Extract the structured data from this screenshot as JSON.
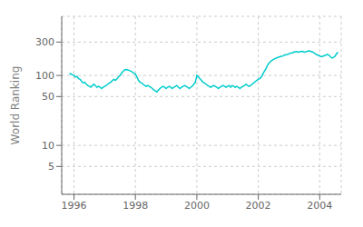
{
  "chart_data": {
    "type": "line",
    "ylabel": "World Ranking",
    "color": "#00cccc",
    "log": "y",
    "grid": true,
    "xlim": [
      1995.6,
      2004.7
    ],
    "ylim": [
      2.0,
      700
    ],
    "xticks": [
      1996,
      1998,
      2000,
      2002,
      2004
    ],
    "yticks": [
      5,
      10,
      50,
      100,
      300
    ],
    "x": [
      1995.85,
      1995.9,
      1995.95,
      1996.0,
      1996.05,
      1996.1,
      1996.15,
      1996.2,
      1996.25,
      1996.3,
      1996.35,
      1996.4,
      1996.45,
      1996.5,
      1996.55,
      1996.6,
      1996.65,
      1996.7,
      1996.75,
      1996.8,
      1996.85,
      1996.9,
      1996.95,
      1997.0,
      1997.05,
      1997.1,
      1997.15,
      1997.2,
      1997.25,
      1997.3,
      1997.35,
      1997.4,
      1997.45,
      1997.5,
      1997.55,
      1997.6,
      1997.65,
      1997.7,
      1997.75,
      1997.8,
      1997.85,
      1997.9,
      1997.95,
      1998.0,
      1998.05,
      1998.1,
      1998.15,
      1998.2,
      1998.25,
      1998.3,
      1998.35,
      1998.4,
      1998.45,
      1998.5,
      1998.55,
      1998.6,
      1998.65,
      1998.7,
      1998.75,
      1998.8,
      1998.85,
      1998.9,
      1998.95,
      1999.0,
      1999.05,
      1999.1,
      1999.15,
      1999.2,
      1999.25,
      1999.3,
      1999.35,
      1999.4,
      1999.45,
      1999.5,
      1999.55,
      1999.6,
      1999.65,
      1999.7,
      1999.75,
      1999.8,
      1999.85,
      1999.9,
      1999.95,
      2000.0,
      2000.05,
      2000.1,
      2000.15,
      2000.2,
      2000.25,
      2000.3,
      2000.35,
      2000.4,
      2000.45,
      2000.5,
      2000.55,
      2000.6,
      2000.65,
      2000.7,
      2000.75,
      2000.8,
      2000.85,
      2000.9,
      2000.95,
      2001.0,
      2001.05,
      2001.1,
      2001.15,
      2001.2,
      2001.25,
      2001.3,
      2001.35,
      2001.4,
      2001.45,
      2001.5,
      2001.55,
      2001.6,
      2001.65,
      2001.7,
      2001.75,
      2001.8,
      2001.85,
      2001.9,
      2001.95,
      2002.0,
      2002.05,
      2002.1,
      2002.15,
      2002.2,
      2002.25,
      2002.3,
      2002.35,
      2002.4,
      2002.45,
      2002.5,
      2002.55,
      2002.6,
      2002.65,
      2002.7,
      2002.75,
      2002.8,
      2002.85,
      2002.9,
      2002.95,
      2003.0,
      2003.05,
      2003.1,
      2003.15,
      2003.2,
      2003.25,
      2003.3,
      2003.35,
      2003.4,
      2003.45,
      2003.5,
      2003.55,
      2003.6,
      2003.65,
      2003.7,
      2003.75,
      2003.8,
      2003.85,
      2003.9,
      2003.95,
      2004.0,
      2004.05,
      2004.1,
      2004.15,
      2004.2,
      2004.25,
      2004.3,
      2004.35,
      2004.4,
      2004.45,
      2004.5,
      2004.55,
      2004.6
    ],
    "values": [
      108,
      105,
      102,
      100,
      95,
      97,
      90,
      88,
      82,
      78,
      80,
      75,
      72,
      70,
      68,
      72,
      75,
      71,
      68,
      70,
      68,
      65,
      68,
      70,
      72,
      75,
      78,
      80,
      85,
      88,
      85,
      90,
      95,
      100,
      108,
      115,
      120,
      122,
      120,
      118,
      115,
      112,
      108,
      105,
      95,
      85,
      80,
      78,
      75,
      72,
      70,
      72,
      70,
      68,
      65,
      62,
      60,
      58,
      62,
      65,
      68,
      70,
      68,
      65,
      68,
      70,
      68,
      65,
      68,
      70,
      72,
      68,
      65,
      68,
      70,
      72,
      70,
      68,
      65,
      68,
      70,
      75,
      80,
      100,
      95,
      90,
      85,
      80,
      78,
      75,
      72,
      70,
      68,
      70,
      72,
      70,
      68,
      65,
      68,
      70,
      72,
      70,
      68,
      70,
      72,
      68,
      72,
      70,
      68,
      70,
      68,
      65,
      68,
      70,
      72,
      75,
      72,
      70,
      72,
      75,
      78,
      82,
      85,
      88,
      90,
      95,
      105,
      115,
      125,
      140,
      150,
      158,
      165,
      170,
      175,
      178,
      182,
      185,
      188,
      190,
      195,
      198,
      200,
      205,
      208,
      210,
      215,
      218,
      220,
      215,
      218,
      222,
      220,
      215,
      218,
      222,
      225,
      222,
      218,
      212,
      205,
      198,
      195,
      190,
      185,
      188,
      192,
      195,
      200,
      195,
      185,
      178,
      182,
      188,
      205,
      215
    ]
  }
}
